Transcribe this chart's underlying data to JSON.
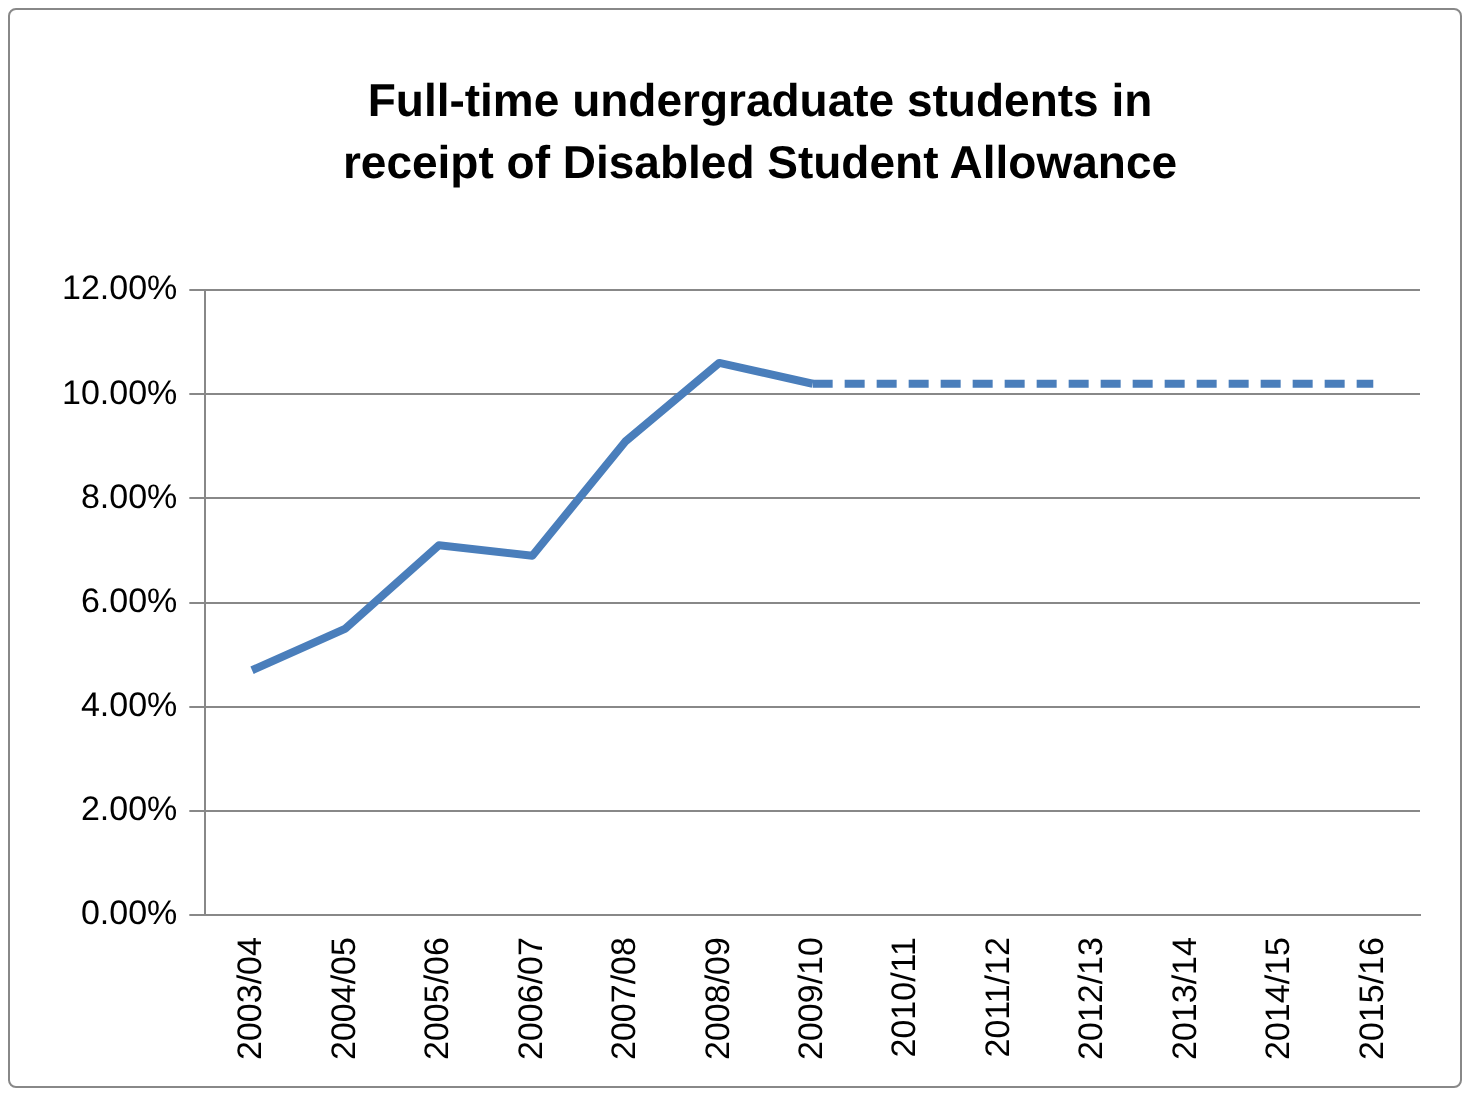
{
  "chart_data": {
    "type": "line",
    "title": "Full-time undergraduate students in receipt of Disabled Student Allowance",
    "categories": [
      "2003/04",
      "2004/05",
      "2005/06",
      "2006/07",
      "2007/08",
      "2008/09",
      "2009/10",
      "2010/11",
      "2011/12",
      "2012/13",
      "2013/14",
      "2014/15",
      "2015/16"
    ],
    "series": [
      {
        "color": "#4a7ebb",
        "line_style": "solid",
        "values": [
          4.7,
          5.5,
          7.1,
          6.9,
          9.1,
          10.6,
          10.2,
          null,
          null,
          null,
          null,
          null,
          null
        ]
      },
      {
        "color": "#4a7ebb",
        "line_style": "dashed",
        "values": [
          null,
          null,
          null,
          null,
          null,
          null,
          10.2,
          10.2,
          10.2,
          10.2,
          10.2,
          10.2,
          10.2
        ]
      }
    ],
    "ylim": [
      0,
      12
    ],
    "yticks": [
      {
        "value": 0,
        "label": "0.00%"
      },
      {
        "value": 2,
        "label": "2.00%"
      },
      {
        "value": 4,
        "label": "4.00%"
      },
      {
        "value": 6,
        "label": "6.00%"
      },
      {
        "value": 8,
        "label": "8.00%"
      },
      {
        "value": 10,
        "label": "10.00%"
      },
      {
        "value": 12,
        "label": "12.00%"
      }
    ],
    "grid": "y",
    "legend": false,
    "marker": "none"
  }
}
